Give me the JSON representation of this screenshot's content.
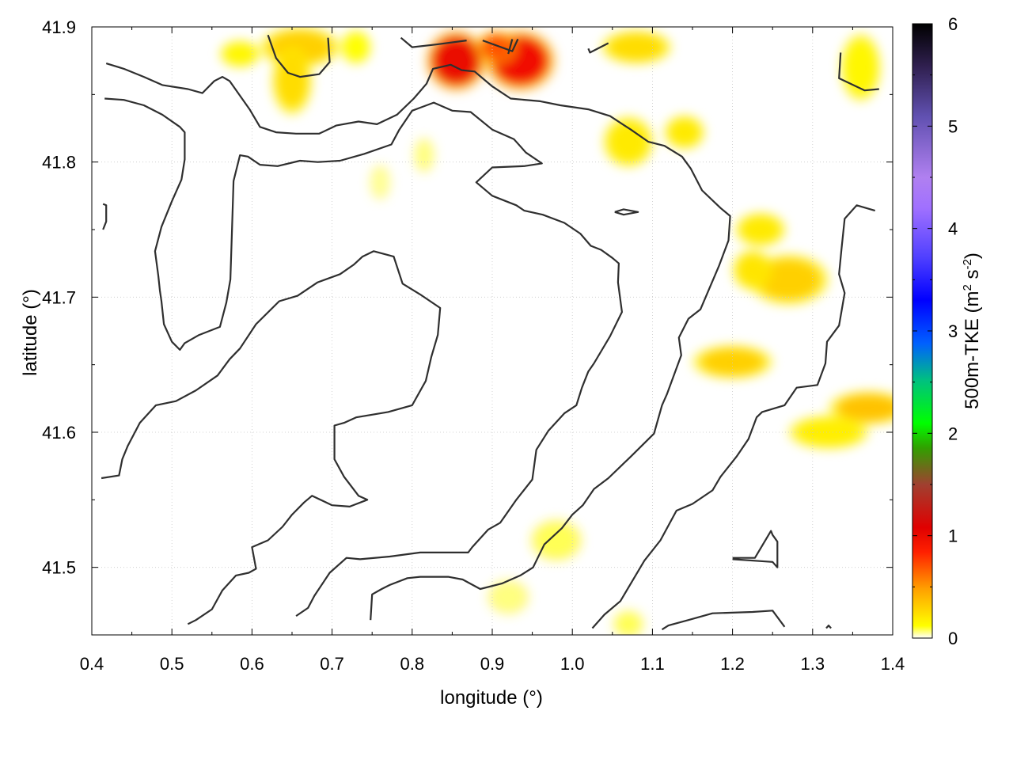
{
  "chart_data": {
    "type": "heatmap",
    "xlabel": "longitude (°)",
    "ylabel": "latitude (°)",
    "xlim": [
      0.4,
      1.4
    ],
    "ylim": [
      41.45,
      41.9
    ],
    "x_ticks": [
      "0.4",
      "0.5",
      "0.6",
      "0.7",
      "0.8",
      "0.9",
      "1.0",
      "1.1",
      "1.2",
      "1.3",
      "1.4"
    ],
    "x_tick_values": [
      0.4,
      0.5,
      0.6,
      0.7,
      0.8,
      0.9,
      1.0,
      1.1,
      1.2,
      1.3,
      1.4
    ],
    "y_ticks": [
      "41.5",
      "41.6",
      "41.7",
      "41.8",
      "41.9"
    ],
    "y_tick_values": [
      41.5,
      41.6,
      41.7,
      41.8,
      41.9
    ],
    "grid": true,
    "colorbar": {
      "label_main": "500m-TKE (m",
      "label_sup1": "2",
      "label_mid": " s",
      "label_sup2": "-2",
      "label_end": ")",
      "range": [
        0,
        6
      ],
      "ticks": [
        "0",
        "1",
        "2",
        "3",
        "4",
        "5",
        "6"
      ],
      "tick_values": [
        0,
        1,
        2,
        3,
        4,
        5,
        6
      ],
      "colors": [
        "#ffffff",
        "#ffff00",
        "#ffa000",
        "#ff2000",
        "#e00000",
        "#a04030",
        "#30a000",
        "#00ff00",
        "#00c080",
        "#0060ff",
        "#0000ff",
        "#5040ff",
        "#a070ff",
        "#b080f0",
        "#6050b0",
        "#302050",
        "#000000"
      ],
      "stops": [
        0,
        0.02,
        0.08,
        0.14,
        0.18,
        0.25,
        0.31,
        0.35,
        0.42,
        0.48,
        0.55,
        0.62,
        0.7,
        0.75,
        0.85,
        0.93,
        1.0
      ]
    },
    "tke_blobs": [
      {
        "lon": 0.855,
        "lat": 41.875,
        "rx": 0.03,
        "ry": 0.018,
        "v": 1.0
      },
      {
        "lon": 0.935,
        "lat": 41.875,
        "rx": 0.035,
        "ry": 0.018,
        "v": 0.95
      },
      {
        "lon": 0.905,
        "lat": 41.885,
        "rx": 0.02,
        "ry": 0.01,
        "v": 0.7
      },
      {
        "lon": 0.66,
        "lat": 41.885,
        "rx": 0.04,
        "ry": 0.012,
        "v": 0.3
      },
      {
        "lon": 0.65,
        "lat": 41.86,
        "rx": 0.02,
        "ry": 0.02,
        "v": 0.25
      },
      {
        "lon": 0.585,
        "lat": 41.88,
        "rx": 0.02,
        "ry": 0.008,
        "v": 0.15
      },
      {
        "lon": 0.73,
        "lat": 41.885,
        "rx": 0.015,
        "ry": 0.01,
        "v": 0.12
      },
      {
        "lon": 1.08,
        "lat": 41.885,
        "rx": 0.035,
        "ry": 0.01,
        "v": 0.25
      },
      {
        "lon": 1.07,
        "lat": 41.815,
        "rx": 0.025,
        "ry": 0.015,
        "v": 0.2
      },
      {
        "lon": 1.14,
        "lat": 41.822,
        "rx": 0.02,
        "ry": 0.01,
        "v": 0.2
      },
      {
        "lon": 1.36,
        "lat": 41.87,
        "rx": 0.02,
        "ry": 0.02,
        "v": 0.15
      },
      {
        "lon": 1.235,
        "lat": 41.75,
        "rx": 0.025,
        "ry": 0.01,
        "v": 0.2
      },
      {
        "lon": 1.27,
        "lat": 41.713,
        "rx": 0.04,
        "ry": 0.015,
        "v": 0.3
      },
      {
        "lon": 1.225,
        "lat": 41.72,
        "rx": 0.02,
        "ry": 0.012,
        "v": 0.22
      },
      {
        "lon": 1.2,
        "lat": 41.652,
        "rx": 0.04,
        "ry": 0.01,
        "v": 0.3
      },
      {
        "lon": 1.37,
        "lat": 41.618,
        "rx": 0.04,
        "ry": 0.01,
        "v": 0.35
      },
      {
        "lon": 1.32,
        "lat": 41.6,
        "rx": 0.04,
        "ry": 0.01,
        "v": 0.18
      },
      {
        "lon": 0.98,
        "lat": 41.52,
        "rx": 0.025,
        "ry": 0.012,
        "v": 0.08
      },
      {
        "lon": 0.92,
        "lat": 41.478,
        "rx": 0.02,
        "ry": 0.01,
        "v": 0.06
      },
      {
        "lon": 1.07,
        "lat": 41.458,
        "rx": 0.015,
        "ry": 0.008,
        "v": 0.08
      },
      {
        "lon": 0.815,
        "lat": 41.805,
        "rx": 0.01,
        "ry": 0.01,
        "v": 0.06
      },
      {
        "lon": 0.76,
        "lat": 41.785,
        "rx": 0.01,
        "ry": 0.01,
        "v": 0.05
      }
    ],
    "contours": [
      [
        [
          0.418,
          41.873
        ],
        [
          0.44,
          41.869
        ],
        [
          0.465,
          41.863
        ],
        [
          0.488,
          41.857
        ],
        [
          0.52,
          41.854
        ],
        [
          0.538,
          41.851
        ],
        [
          0.553,
          41.86
        ],
        [
          0.563,
          41.863
        ],
        [
          0.572,
          41.86
        ],
        [
          0.597,
          41.839
        ],
        [
          0.61,
          41.826
        ],
        [
          0.63,
          41.822
        ],
        [
          0.655,
          41.821
        ],
        [
          0.684,
          41.821
        ],
        [
          0.705,
          41.827
        ],
        [
          0.733,
          41.83
        ],
        [
          0.756,
          41.828
        ],
        [
          0.781,
          41.835
        ],
        [
          0.802,
          41.847
        ],
        [
          0.818,
          41.858
        ],
        [
          0.826,
          41.869
        ],
        [
          0.848,
          41.872
        ],
        [
          0.862,
          41.868
        ],
        [
          0.878,
          41.867
        ],
        [
          0.9,
          41.856
        ],
        [
          0.923,
          41.847
        ],
        [
          0.96,
          41.845
        ],
        [
          0.985,
          41.842
        ],
        [
          1.02,
          41.839
        ],
        [
          1.047,
          41.834
        ],
        [
          1.073,
          41.824
        ],
        [
          1.095,
          41.815
        ],
        [
          1.115,
          41.812
        ],
        [
          1.137,
          41.804
        ],
        [
          1.148,
          41.795
        ],
        [
          1.162,
          41.779
        ],
        [
          1.185,
          41.766
        ],
        [
          1.197,
          41.76
        ],
        [
          1.195,
          41.742
        ],
        [
          1.183,
          41.723
        ],
        [
          1.16,
          41.691
        ],
        [
          1.145,
          41.684
        ],
        [
          1.133,
          41.67
        ],
        [
          1.136,
          41.657
        ],
        [
          1.118,
          41.628
        ],
        [
          1.112,
          41.62
        ],
        [
          1.102,
          41.599
        ],
        [
          1.073,
          41.582
        ],
        [
          1.045,
          41.566
        ],
        [
          1.027,
          41.558
        ],
        [
          1.013,
          41.546
        ],
        [
          1.0,
          41.539
        ],
        [
          0.987,
          41.529
        ],
        [
          0.965,
          41.517
        ],
        [
          0.951,
          41.5
        ],
        [
          0.935,
          41.494
        ],
        [
          0.912,
          41.488
        ],
        [
          0.885,
          41.484
        ],
        [
          0.863,
          41.491
        ],
        [
          0.845,
          41.493
        ],
        [
          0.81,
          41.493
        ],
        [
          0.794,
          41.492
        ],
        [
          0.772,
          41.487
        ],
        [
          0.762,
          41.484
        ],
        [
          0.75,
          41.48
        ],
        [
          0.748,
          41.461
        ]
      ],
      [
        [
          0.416,
          41.847
        ],
        [
          0.44,
          41.846
        ],
        [
          0.465,
          41.842
        ],
        [
          0.488,
          41.835
        ],
        [
          0.51,
          41.826
        ],
        [
          0.516,
          41.822
        ],
        [
          0.516,
          41.802
        ],
        [
          0.512,
          41.787
        ],
        [
          0.5,
          41.771
        ],
        [
          0.487,
          41.752
        ],
        [
          0.479,
          41.734
        ],
        [
          0.483,
          41.716
        ],
        [
          0.485,
          41.705
        ],
        [
          0.487,
          41.697
        ],
        [
          0.49,
          41.68
        ],
        [
          0.5,
          41.667
        ],
        [
          0.51,
          41.661
        ],
        [
          0.516,
          41.666
        ],
        [
          0.534,
          41.672
        ],
        [
          0.56,
          41.678
        ],
        [
          0.568,
          41.696
        ],
        [
          0.573,
          41.713
        ],
        [
          0.575,
          41.749
        ],
        [
          0.577,
          41.786
        ],
        [
          0.585,
          41.805
        ],
        [
          0.595,
          41.804
        ],
        [
          0.61,
          41.798
        ],
        [
          0.632,
          41.797
        ],
        [
          0.66,
          41.801
        ],
        [
          0.682,
          41.8
        ],
        [
          0.71,
          41.801
        ],
        [
          0.74,
          41.806
        ],
        [
          0.774,
          41.813
        ],
        [
          0.784,
          41.824
        ],
        [
          0.8,
          41.838
        ],
        [
          0.827,
          41.844
        ],
        [
          0.85,
          41.838
        ],
        [
          0.873,
          41.837
        ],
        [
          0.9,
          41.824
        ],
        [
          0.927,
          41.817
        ],
        [
          0.942,
          41.807
        ],
        [
          0.962,
          41.799
        ],
        [
          0.94,
          41.797
        ],
        [
          0.9,
          41.796
        ],
        [
          0.88,
          41.785
        ],
        [
          0.9,
          41.775
        ],
        [
          0.93,
          41.768
        ],
        [
          0.94,
          41.764
        ],
        [
          0.963,
          41.761
        ],
        [
          0.99,
          41.755
        ],
        [
          1.01,
          41.747
        ],
        [
          1.023,
          41.738
        ],
        [
          1.036,
          41.735
        ],
        [
          1.05,
          41.729
        ],
        [
          1.058,
          41.725
        ],
        [
          1.057,
          41.711
        ],
        [
          1.062,
          41.689
        ],
        [
          1.047,
          41.671
        ],
        [
          1.027,
          41.651
        ],
        [
          1.02,
          41.645
        ],
        [
          1.012,
          41.633
        ],
        [
          1.005,
          41.62
        ],
        [
          0.99,
          41.614
        ],
        [
          0.97,
          41.601
        ],
        [
          0.955,
          41.587
        ],
        [
          0.95,
          41.565
        ],
        [
          0.93,
          41.55
        ],
        [
          0.91,
          41.533
        ],
        [
          0.895,
          41.528
        ],
        [
          0.875,
          41.515
        ],
        [
          0.87,
          41.511
        ],
        [
          0.845,
          41.511
        ],
        [
          0.81,
          41.511
        ],
        [
          0.772,
          41.508
        ],
        [
          0.735,
          41.506
        ],
        [
          0.718,
          41.507
        ],
        [
          0.697,
          41.496
        ],
        [
          0.678,
          41.479
        ],
        [
          0.67,
          41.47
        ],
        [
          0.655,
          41.464
        ]
      ],
      [
        [
          0.412,
          41.566
        ],
        [
          0.434,
          41.568
        ],
        [
          0.438,
          41.58
        ],
        [
          0.445,
          41.59
        ],
        [
          0.46,
          41.607
        ],
        [
          0.48,
          41.62
        ],
        [
          0.505,
          41.623
        ],
        [
          0.53,
          41.631
        ],
        [
          0.557,
          41.642
        ],
        [
          0.572,
          41.654
        ],
        [
          0.585,
          41.662
        ],
        [
          0.605,
          41.68
        ],
        [
          0.634,
          41.697
        ],
        [
          0.657,
          41.701
        ],
        [
          0.682,
          41.711
        ],
        [
          0.71,
          41.717
        ],
        [
          0.727,
          41.724
        ],
        [
          0.738,
          41.73
        ],
        [
          0.752,
          41.734
        ],
        [
          0.777,
          41.73
        ],
        [
          0.788,
          41.71
        ],
        [
          0.81,
          41.702
        ],
        [
          0.835,
          41.692
        ],
        [
          0.832,
          41.672
        ],
        [
          0.824,
          41.656
        ],
        [
          0.817,
          41.638
        ],
        [
          0.8,
          41.62
        ],
        [
          0.77,
          41.615
        ],
        [
          0.73,
          41.611
        ],
        [
          0.715,
          41.607
        ],
        [
          0.703,
          41.605
        ],
        [
          0.703,
          41.58
        ],
        [
          0.715,
          41.567
        ],
        [
          0.733,
          41.553
        ],
        [
          0.744,
          41.55
        ],
        [
          0.722,
          41.545
        ],
        [
          0.7,
          41.546
        ],
        [
          0.675,
          41.553
        ],
        [
          0.665,
          41.548
        ],
        [
          0.65,
          41.539
        ],
        [
          0.638,
          41.53
        ],
        [
          0.62,
          41.52
        ],
        [
          0.6,
          41.515
        ],
        [
          0.605,
          41.499
        ],
        [
          0.596,
          41.496
        ],
        [
          0.58,
          41.494
        ],
        [
          0.563,
          41.483
        ],
        [
          0.55,
          41.469
        ],
        [
          0.53,
          41.461
        ],
        [
          0.52,
          41.458
        ]
      ],
      [
        [
          0.62,
          41.894
        ],
        [
          0.63,
          41.877
        ],
        [
          0.645,
          41.866
        ],
        [
          0.66,
          41.863
        ],
        [
          0.684,
          41.865
        ],
        [
          0.697,
          41.874
        ],
        [
          0.695,
          41.892
        ]
      ],
      [
        [
          0.786,
          41.892
        ],
        [
          0.8,
          41.885
        ],
        [
          0.83,
          41.887
        ],
        [
          0.868,
          41.89
        ]
      ],
      [
        [
          0.888,
          41.89
        ],
        [
          0.925,
          41.882
        ],
        [
          0.932,
          41.891
        ]
      ],
      [
        [
          0.92,
          41.88
        ],
        [
          0.925,
          41.891
        ]
      ],
      [
        [
          1.02,
          41.884
        ],
        [
          1.022,
          41.881
        ],
        [
          1.045,
          41.888
        ]
      ],
      [
        [
          1.335,
          41.881
        ],
        [
          1.333,
          41.862
        ],
        [
          1.365,
          41.853
        ],
        [
          1.383,
          41.854
        ]
      ],
      [
        [
          0.414,
          41.769
        ],
        [
          0.418,
          41.768
        ],
        [
          0.418,
          41.756
        ],
        [
          0.414,
          41.75
        ]
      ],
      [
        [
          1.053,
          41.763
        ],
        [
          1.064,
          41.765
        ],
        [
          1.082,
          41.763
        ],
        [
          1.064,
          41.761
        ],
        [
          1.053,
          41.763
        ]
      ],
      [
        [
          1.378,
          41.764
        ],
        [
          1.355,
          41.768
        ],
        [
          1.34,
          41.758
        ],
        [
          1.336,
          41.735
        ],
        [
          1.333,
          41.717
        ],
        [
          1.34,
          41.703
        ],
        [
          1.333,
          41.679
        ],
        [
          1.318,
          41.667
        ],
        [
          1.316,
          41.651
        ],
        [
          1.306,
          41.635
        ],
        [
          1.28,
          41.633
        ],
        [
          1.265,
          41.62
        ],
        [
          1.237,
          41.615
        ],
        [
          1.23,
          41.611
        ],
        [
          1.22,
          41.595
        ],
        [
          1.205,
          41.582
        ],
        [
          1.185,
          41.567
        ],
        [
          1.175,
          41.557
        ],
        [
          1.15,
          41.547
        ],
        [
          1.13,
          41.542
        ],
        [
          1.11,
          41.52
        ],
        [
          1.09,
          41.505
        ],
        [
          1.075,
          41.49
        ],
        [
          1.06,
          41.475
        ],
        [
          1.04,
          41.465
        ],
        [
          1.025,
          41.455
        ]
      ],
      [
        [
          1.2,
          41.507
        ],
        [
          1.228,
          41.507
        ],
        [
          1.248,
          41.527
        ],
        [
          1.25,
          41.524
        ],
        [
          1.256,
          41.519
        ],
        [
          1.256,
          41.5
        ],
        [
          1.25,
          41.504
        ],
        [
          1.2,
          41.506
        ]
      ],
      [
        [
          1.112,
          41.454
        ],
        [
          1.12,
          41.457
        ],
        [
          1.145,
          41.461
        ],
        [
          1.175,
          41.466
        ],
        [
          1.225,
          41.467
        ],
        [
          1.25,
          41.468
        ],
        [
          1.265,
          41.456
        ]
      ],
      [
        [
          1.317,
          41.455
        ],
        [
          1.32,
          41.457
        ],
        [
          1.323,
          41.455
        ]
      ]
    ]
  }
}
